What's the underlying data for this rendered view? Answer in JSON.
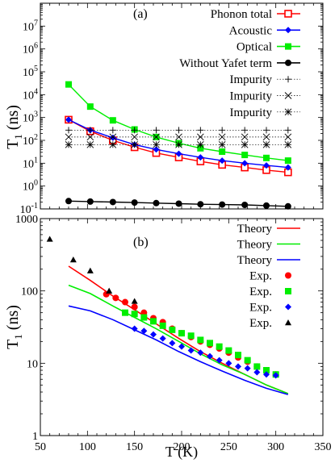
{
  "chart_data": [
    {
      "panel_label": "(a)",
      "type": "line",
      "xlim": [
        50,
        350
      ],
      "ylim": [
        0.1,
        100000000
      ],
      "yscale": "log",
      "ylabel": "T",
      "ylabel_sub": "1",
      "ylabel_unit": " (ns)",
      "y_tick_labels": [
        {
          "value": 0.1,
          "base": "10",
          "exp": "-1"
        },
        {
          "value": 1,
          "base": "10",
          "exp": "0"
        },
        {
          "value": 10,
          "base": "10",
          "exp": "1"
        },
        {
          "value": 100,
          "base": "10",
          "exp": "2"
        },
        {
          "value": 1000,
          "base": "10",
          "exp": "3"
        },
        {
          "value": 10000,
          "base": "10",
          "exp": "4"
        },
        {
          "value": 100000,
          "base": "10",
          "exp": "5"
        },
        {
          "value": 1000000,
          "base": "10",
          "exp": "6"
        },
        {
          "value": 10000000,
          "base": "10",
          "exp": "7"
        }
      ],
      "legend_position": "top-right",
      "series": [
        {
          "name": "Phonon total",
          "color": "#ff0000",
          "marker": "square-open",
          "line": "solid",
          "x": [
            80,
            103,
            127,
            150,
            173,
            197,
            220,
            243,
            267,
            290,
            313
          ],
          "y": [
            800,
            250,
            100,
            50,
            28,
            18,
            12,
            8.5,
            6.5,
            5,
            4
          ]
        },
        {
          "name": "Acoustic",
          "color": "#0000ff",
          "marker": "diamond",
          "line": "solid",
          "x": [
            80,
            103,
            127,
            150,
            173,
            197,
            220,
            243,
            267,
            290,
            313
          ],
          "y": [
            800,
            280,
            130,
            65,
            40,
            26,
            18,
            13,
            10,
            8,
            6.5
          ]
        },
        {
          "name": "Optical",
          "color": "#00ee00",
          "marker": "square",
          "line": "solid",
          "x": [
            80,
            103,
            127,
            150,
            173,
            197,
            220,
            243,
            267,
            290,
            313
          ],
          "y": [
            28000,
            3000,
            750,
            300,
            140,
            75,
            45,
            32,
            23,
            17,
            13
          ]
        },
        {
          "name": "Without Yafet term",
          "color": "#000000",
          "marker": "circle",
          "line": "solid",
          "x": [
            80,
            103,
            127,
            150,
            173,
            197,
            220,
            243,
            267,
            290,
            313
          ],
          "y": [
            0.22,
            0.21,
            0.2,
            0.19,
            0.18,
            0.17,
            0.16,
            0.155,
            0.15,
            0.14,
            0.13
          ]
        },
        {
          "name": "Impurity",
          "color": "#000000",
          "marker": "plus",
          "line": "dotted",
          "x": [
            80,
            103,
            127,
            150,
            173,
            197,
            220,
            243,
            267,
            290,
            313
          ],
          "y": [
            280,
            280,
            280,
            280,
            280,
            280,
            280,
            280,
            280,
            280,
            280
          ]
        },
        {
          "name": "Impurity",
          "color": "#000000",
          "marker": "cross",
          "line": "dotted",
          "x": [
            80,
            103,
            127,
            150,
            173,
            197,
            220,
            243,
            267,
            290,
            313
          ],
          "y": [
            140,
            140,
            140,
            140,
            140,
            140,
            140,
            140,
            140,
            140,
            140
          ]
        },
        {
          "name": "Impurity",
          "color": "#000000",
          "marker": "asterisk",
          "line": "dotted",
          "x": [
            80,
            103,
            127,
            150,
            173,
            197,
            220,
            243,
            267,
            290,
            313
          ],
          "y": [
            65,
            65,
            65,
            65,
            65,
            65,
            65,
            65,
            65,
            65,
            65
          ]
        }
      ]
    },
    {
      "panel_label": "(b)",
      "type": "line",
      "xlim": [
        50,
        350
      ],
      "ylim": [
        1,
        1000
      ],
      "yscale": "log",
      "xlabel": "T (K)",
      "ylabel": "T",
      "ylabel_sub": "1",
      "ylabel_unit": " (ns)",
      "x_ticks": [
        50,
        100,
        150,
        200,
        250,
        300,
        350
      ],
      "x_tick_labels": [
        "50",
        "100",
        "150",
        "200",
        "250",
        "300",
        "350"
      ],
      "y_tick_labels": [
        {
          "value": 1,
          "label": "1"
        },
        {
          "value": 10,
          "label": "10"
        },
        {
          "value": 100,
          "label": "100"
        },
        {
          "value": 1000,
          "label": "1000"
        }
      ],
      "legend_position": "top-right",
      "series": [
        {
          "name": "Theory",
          "color": "#ff0000",
          "marker": "none",
          "line": "solid",
          "x": [
            80,
            103,
            127,
            150,
            173,
            197,
            220,
            243,
            267,
            290,
            313
          ],
          "y": [
            220,
            140,
            85,
            55,
            35,
            22,
            14.5,
            10,
            7,
            5,
            3.8
          ]
        },
        {
          "name": "Theory",
          "color": "#00ee00",
          "marker": "none",
          "line": "solid",
          "x": [
            80,
            103,
            127,
            150,
            173,
            197,
            220,
            243,
            267,
            290,
            313
          ],
          "y": [
            120,
            92,
            62,
            43,
            30,
            20,
            13.5,
            9.5,
            7,
            5,
            3.8
          ]
        },
        {
          "name": "Theory",
          "color": "#0000ff",
          "marker": "none",
          "line": "solid",
          "x": [
            80,
            103,
            127,
            150,
            173,
            197,
            220,
            243,
            267,
            290,
            313
          ],
          "y": [
            62,
            53,
            40,
            29,
            21,
            14.5,
            10.5,
            7.8,
            5.8,
            4.5,
            3.7
          ]
        },
        {
          "name": "Exp.",
          "color": "#ff0000",
          "marker": "circle",
          "line": "none",
          "x": [
            120,
            130,
            140,
            150,
            160,
            170,
            180,
            190,
            200,
            210,
            220,
            230,
            240,
            250,
            260,
            270,
            280,
            290,
            300
          ],
          "y": [
            90,
            80,
            70,
            60,
            50,
            42,
            37,
            30,
            26,
            23,
            20,
            18,
            16,
            14,
            12,
            10.5,
            9,
            8,
            7
          ]
        },
        {
          "name": "Exp.",
          "color": "#00ee00",
          "marker": "square",
          "line": "none",
          "x": [
            140,
            150,
            160,
            170,
            180,
            190,
            200,
            210,
            220,
            230,
            240,
            250,
            260,
            270,
            280,
            290,
            300
          ],
          "y": [
            50,
            48,
            43,
            38,
            33,
            29,
            26,
            24,
            21,
            19,
            17,
            15,
            13,
            11,
            9,
            8,
            7
          ]
        },
        {
          "name": "Exp.",
          "color": "#0000ff",
          "marker": "diamond",
          "line": "none",
          "x": [
            150,
            160,
            170,
            180,
            190,
            200,
            210,
            220,
            230,
            240,
            250,
            260,
            270,
            280,
            290,
            300
          ],
          "y": [
            30,
            28,
            25,
            22,
            19,
            17,
            15,
            14,
            12.5,
            11,
            10,
            9,
            8.5,
            7.5,
            7,
            6.8
          ]
        },
        {
          "name": "Exp.",
          "color": "#000000",
          "marker": "triangle",
          "line": "none",
          "x": [
            60,
            85,
            103,
            123,
            150
          ],
          "y": [
            520,
            270,
            190,
            100,
            72
          ]
        }
      ]
    }
  ]
}
